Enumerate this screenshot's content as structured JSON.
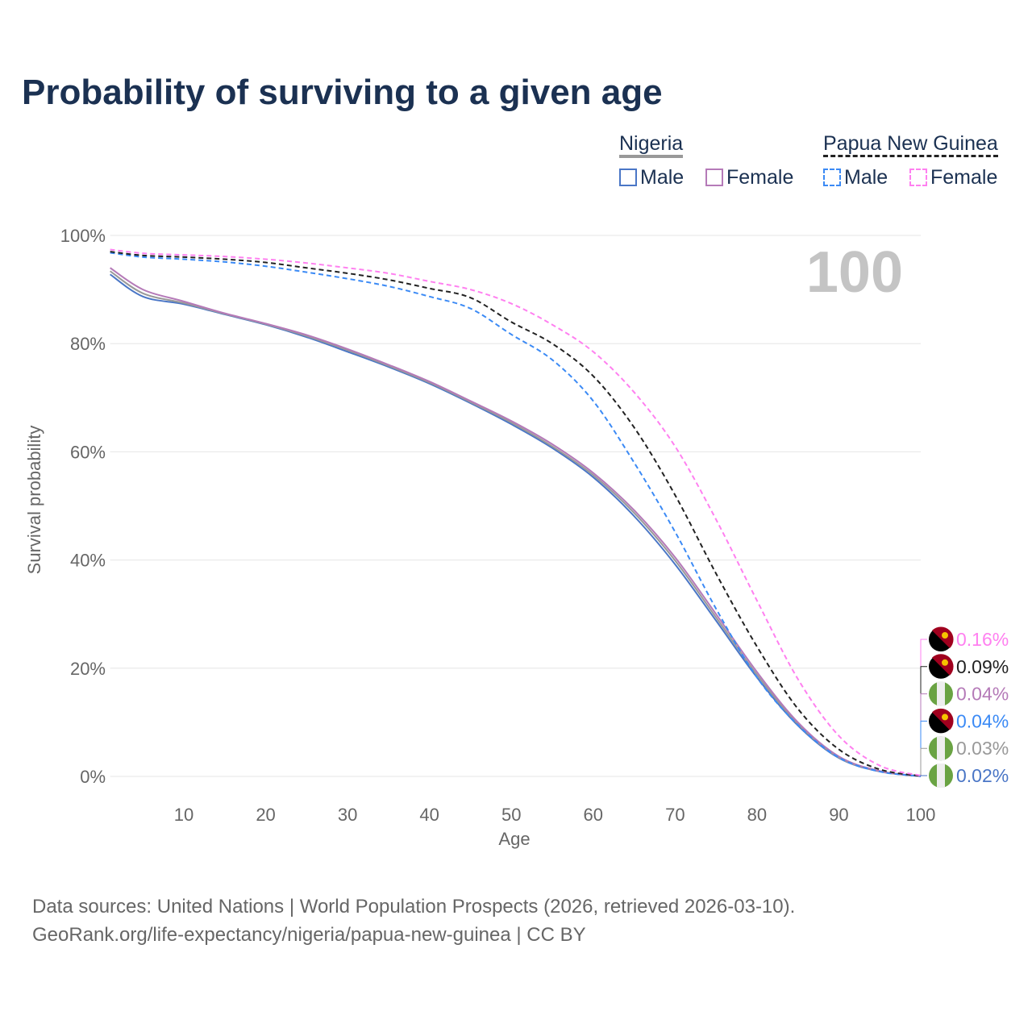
{
  "title": "Probability of surviving to a given age",
  "legend": {
    "group1": "Nigeria",
    "group2": "Papua New Guinea",
    "male": "Male",
    "female": "Female"
  },
  "footer": {
    "line1": "Data sources: United Nations | World Population Prospects (2026, retrieved 2026-03-10).",
    "line2": "GeoRank.org/life-expectancy/nigeria/papua-new-guinea | CC BY"
  },
  "chart_data": {
    "type": "line",
    "title": "Probability of surviving to a given age",
    "xlabel": "Age",
    "ylabel": "Survival probability",
    "big_label": "100",
    "xlim": [
      1,
      100
    ],
    "ylim": [
      0,
      100
    ],
    "xticks": [
      "10",
      "20",
      "30",
      "40",
      "50",
      "60",
      "70",
      "80",
      "90",
      "100"
    ],
    "yticks": [
      "0%",
      "20%",
      "40%",
      "60%",
      "80%",
      "100%"
    ],
    "x": [
      1,
      5,
      10,
      15,
      20,
      25,
      30,
      35,
      40,
      45,
      50,
      55,
      60,
      65,
      70,
      75,
      80,
      85,
      90,
      95,
      100
    ],
    "series": [
      {
        "name": "Nigeria Male",
        "color": "#4a76c6",
        "dash": false,
        "end_label": "0.02%",
        "flag": "nigeria",
        "values": [
          92.8,
          88.7,
          87.3,
          85.4,
          83.5,
          81.2,
          78.5,
          75.7,
          72.6,
          69,
          65.1,
          60.7,
          55.3,
          48.1,
          39.2,
          28.8,
          18.3,
          9.4,
          3.4,
          0.9,
          0.02
        ]
      },
      {
        "name": "Nigeria",
        "color": "#999999",
        "dash": false,
        "end_label": "0.03%",
        "flag": "nigeria",
        "values": [
          93.4,
          89.3,
          87.5,
          85.5,
          83.6,
          81.4,
          78.8,
          75.9,
          72.8,
          69.2,
          65.4,
          61,
          55.7,
          48.7,
          39.9,
          29.4,
          18.8,
          9.7,
          3.5,
          0.95,
          0.03
        ]
      },
      {
        "name": "Nigeria Female",
        "color": "#b57ab8",
        "dash": false,
        "end_label": "0.04%",
        "flag": "nigeria",
        "values": [
          94,
          90,
          87.8,
          85.6,
          83.7,
          81.6,
          79,
          76.1,
          73,
          69.4,
          65.7,
          61.4,
          56.1,
          49.2,
          40.5,
          30,
          19.3,
          10,
          3.7,
          1,
          0.04
        ]
      },
      {
        "name": "Papua New Guinea Male",
        "color": "#3b8af5",
        "dash": true,
        "end_label": "0.04%",
        "flag": "png",
        "values": [
          96.8,
          96,
          95.6,
          95.1,
          94.3,
          93.2,
          92,
          90.6,
          88.7,
          86.5,
          81.7,
          77,
          69.4,
          58,
          45.2,
          31,
          18.3,
          9.5,
          3.5,
          0.9,
          0.04
        ]
      },
      {
        "name": "Papua New Guinea",
        "color": "#222222",
        "dash": true,
        "end_label": "0.09%",
        "flag": "png",
        "values": [
          97,
          96.3,
          96,
          95.6,
          95,
          94,
          93,
          91.8,
          90.2,
          88.5,
          84,
          80,
          74,
          64.5,
          52,
          37.5,
          24,
          12.5,
          5,
          1.3,
          0.09
        ]
      },
      {
        "name": "Papua New Guinea Female",
        "color": "#ff80f0",
        "dash": true,
        "end_label": "0.16%",
        "flag": "png",
        "values": [
          97.4,
          96.7,
          96.4,
          96.1,
          95.6,
          94.9,
          94,
          93,
          91.5,
          90,
          87.4,
          83.5,
          78.5,
          71,
          61,
          47.5,
          32.5,
          18,
          7.5,
          2,
          0.16
        ]
      }
    ]
  }
}
